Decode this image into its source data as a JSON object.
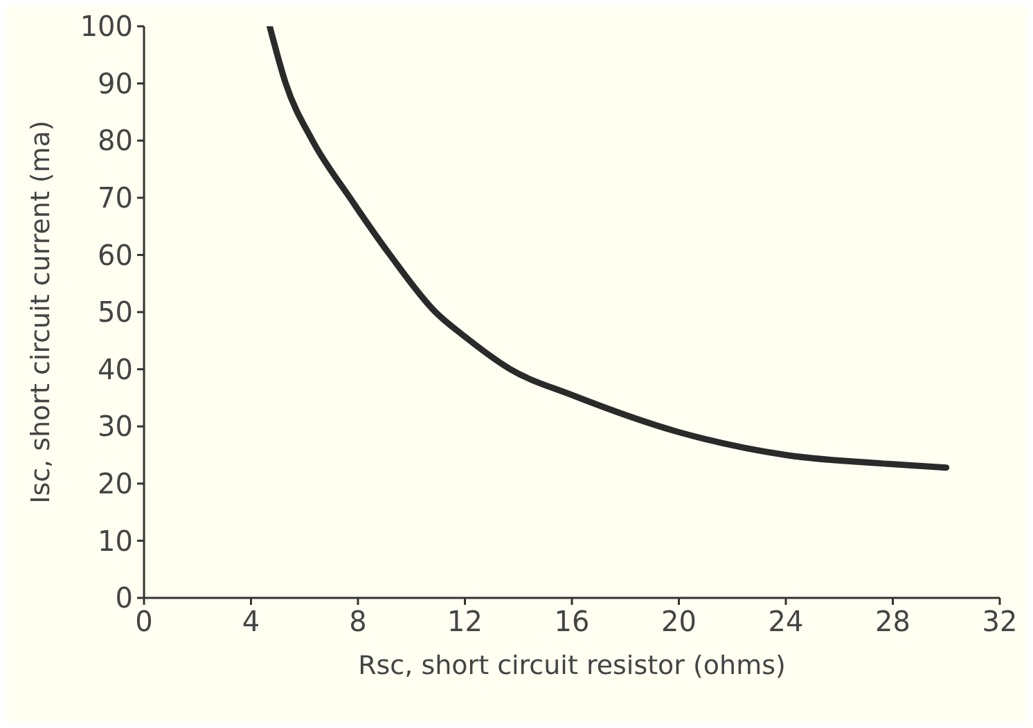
{
  "chart_data": {
    "type": "line",
    "xlabel": "Rsc, short circuit resistor (ohms)",
    "ylabel": "Isc, short circuit current (ma)",
    "x": [
      4.7,
      5.3,
      6.3,
      7.7,
      9.2,
      10.9,
      12,
      13.7,
      16,
      20,
      24,
      28,
      30
    ],
    "series": [
      {
        "color": "#2a2a2a",
        "values": [
          100,
          90,
          80,
          70,
          60,
          50,
          45.7,
          40,
          35.5,
          29,
          25,
          23.4,
          22.8
        ]
      }
    ],
    "xlim": [
      0,
      32
    ],
    "xticks": [
      0,
      4,
      8,
      12,
      16,
      20,
      24,
      28,
      32
    ],
    "ylim": [
      0,
      100
    ],
    "yticks": [
      0,
      10,
      20,
      30,
      40,
      50,
      60,
      70,
      80,
      90,
      100
    ],
    "grid": false,
    "legend": false,
    "marker": "none",
    "line_style": "solid"
  }
}
